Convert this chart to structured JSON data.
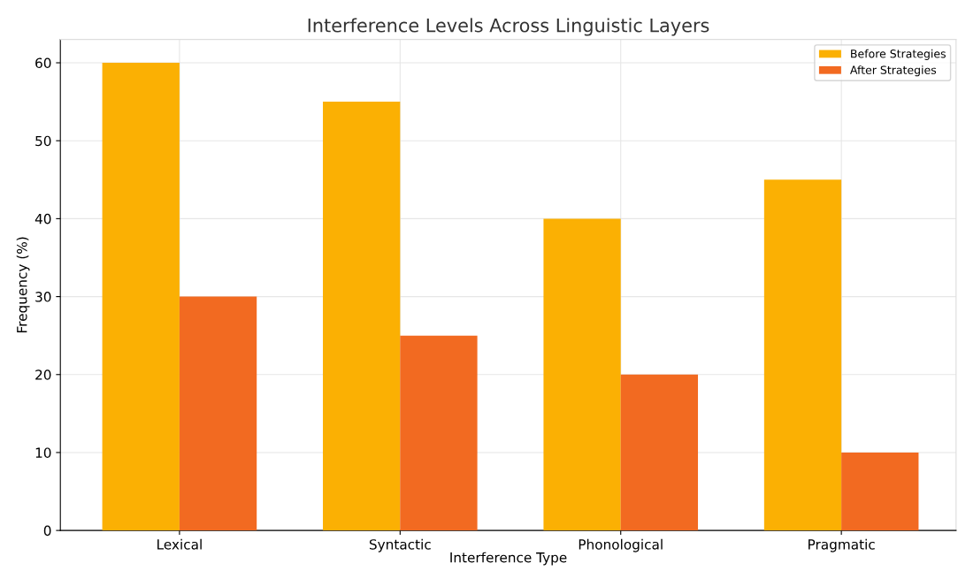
{
  "chart_data": {
    "type": "bar",
    "title": "Interference Levels Across Linguistic Layers",
    "xlabel": "Interference Type",
    "ylabel": "Frequency (%)",
    "categories": [
      "Lexical",
      "Syntactic",
      "Phonological",
      "Pragmatic"
    ],
    "series": [
      {
        "name": "Before Strategies",
        "color": "#fbb003",
        "values": [
          60,
          55,
          40,
          45
        ]
      },
      {
        "name": "After Strategies",
        "color": "#f26a21",
        "values": [
          30,
          25,
          20,
          10
        ]
      }
    ],
    "ylim": [
      0,
      63
    ],
    "yticks": [
      0,
      10,
      20,
      30,
      40,
      50,
      60
    ],
    "grid": true,
    "legend": "top right"
  }
}
